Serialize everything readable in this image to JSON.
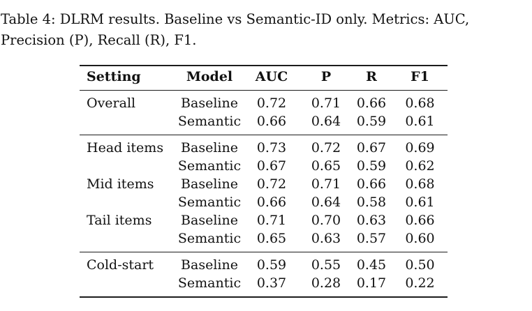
{
  "caption": {
    "text": "Table 4: DLRM results. Baseline vs Semantic-ID only. Metrics: AUC, Precision (P), Recall (R), F1."
  },
  "table": {
    "columns": [
      "Setting",
      "Model",
      "AUC",
      "P",
      "R",
      "F1"
    ],
    "groups": [
      {
        "rows": [
          {
            "setting": "Overall",
            "model": "Baseline",
            "values": [
              "0.72",
              "0.71",
              "0.66",
              "0.68"
            ]
          },
          {
            "setting": "",
            "model": "Semantic",
            "values": [
              "0.66",
              "0.64",
              "0.59",
              "0.61"
            ]
          }
        ]
      },
      {
        "rows": [
          {
            "setting": "Head items",
            "model": "Baseline",
            "values": [
              "0.73",
              "0.72",
              "0.67",
              "0.69"
            ]
          },
          {
            "setting": "",
            "model": "Semantic",
            "values": [
              "0.67",
              "0.65",
              "0.59",
              "0.62"
            ]
          },
          {
            "setting": "Mid items",
            "model": "Baseline",
            "values": [
              "0.72",
              "0.71",
              "0.66",
              "0.68"
            ]
          },
          {
            "setting": "",
            "model": "Semantic",
            "values": [
              "0.66",
              "0.64",
              "0.58",
              "0.61"
            ]
          },
          {
            "setting": "Tail items",
            "model": "Baseline",
            "values": [
              "0.71",
              "0.70",
              "0.63",
              "0.66"
            ]
          },
          {
            "setting": "",
            "model": "Semantic",
            "values": [
              "0.65",
              "0.63",
              "0.57",
              "0.60"
            ]
          }
        ]
      },
      {
        "rows": [
          {
            "setting": "Cold-start",
            "model": "Baseline",
            "values": [
              "0.59",
              "0.55",
              "0.45",
              "0.50"
            ]
          },
          {
            "setting": "",
            "model": "Semantic",
            "values": [
              "0.37",
              "0.28",
              "0.17",
              "0.22"
            ]
          }
        ]
      }
    ]
  },
  "colors": {
    "text": "#111111",
    "rule": "#1c1c1c",
    "background": "#ffffff"
  }
}
